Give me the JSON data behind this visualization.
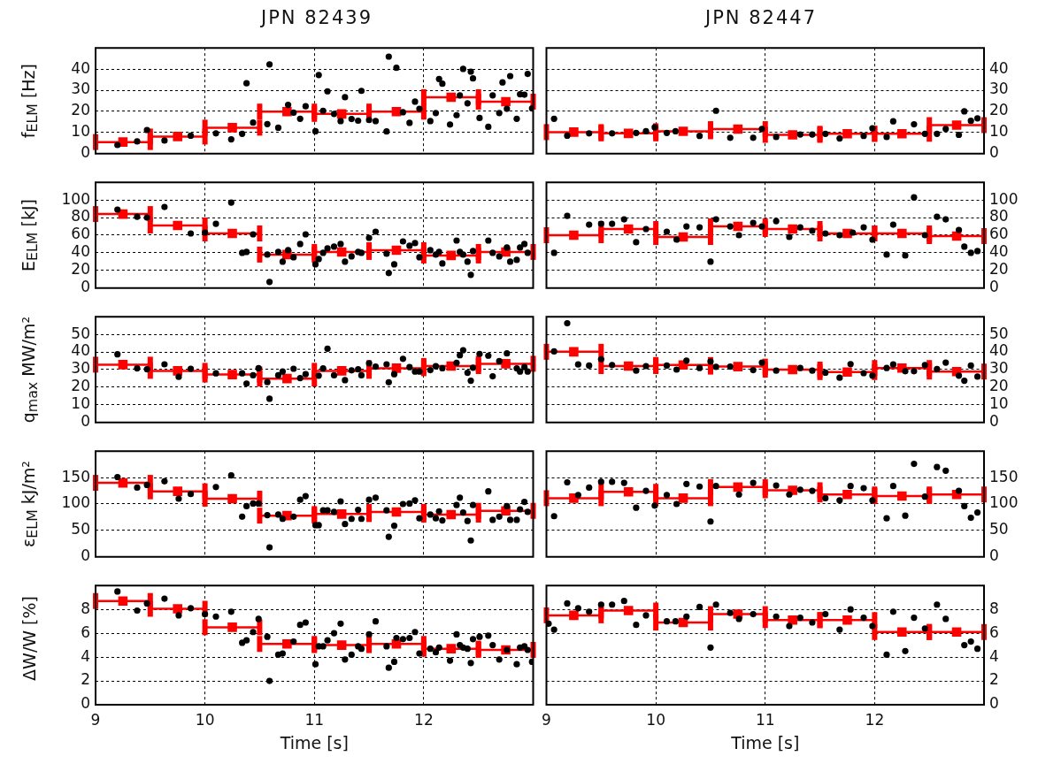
{
  "chart_data": [
    {
      "type": "scatter",
      "title": "JPN 82439",
      "ylabel": "f$_{ELM}$ [Hz]",
      "xlim": [
        9,
        13
      ],
      "xticks": [
        9,
        10,
        11,
        12
      ],
      "ylim": [
        0,
        50
      ],
      "yticks": [
        0,
        10,
        20,
        30,
        40
      ],
      "grid": true,
      "tick_labels": "y",
      "series": [
        {
          "color": "#000000",
          "marker": "circle",
          "x": [
            9.2,
            9.38,
            9.47,
            9.63,
            9.87,
            10.1,
            10.24,
            10.34,
            10.38,
            10.44,
            10.57,
            10.59,
            10.67,
            10.76,
            10.81,
            10.87,
            10.92,
            11.01,
            11.04,
            11.08,
            11.12,
            11.18,
            11.28,
            11.24,
            11.34,
            11.4,
            11.43,
            11.5,
            11.56,
            11.66,
            11.68,
            11.75,
            11.81,
            11.87,
            11.92,
            11.96,
            12.06,
            12.11,
            12.14,
            12.17,
            12.24,
            12.3,
            12.33,
            12.36,
            12.4,
            12.43,
            12.45,
            12.51,
            12.59,
            12.63,
            12.69,
            12.72,
            12.76,
            12.79,
            12.85,
            12.88,
            12.92,
            12.95,
            12.99
          ],
          "values": [
            4.1,
            5.8,
            11.2,
            6.2,
            8.5,
            9.6,
            6.8,
            9.4,
            33.3,
            14.7,
            14,
            42.2,
            12.3,
            23.1,
            19.4,
            16.5,
            22.4,
            10.6,
            37.2,
            20.3,
            29.5,
            18.8,
            26.7,
            15.4,
            16.4,
            15.6,
            29.7,
            15.9,
            15.4,
            10.5,
            45.9,
            40.6,
            19.6,
            14.6,
            24.6,
            21.2,
            15.4,
            19.2,
            35.3,
            33.1,
            13.8,
            18.2,
            27.6,
            40.1,
            23.8,
            38.8,
            35.6,
            16.9,
            12.7,
            27.6,
            19.2,
            33.7,
            21.2,
            36.7,
            16.5,
            28.1,
            27.9,
            37.7,
            21.4
          ]
        },
        {
          "color": "#ff0000",
          "marker": "square",
          "x": [
            9.25,
            9.75,
            10.25,
            10.75,
            11.25,
            11.75,
            12.25,
            12.75
          ],
          "values": [
            5.5,
            8.1,
            12.3,
            19.9,
            18.8,
            19.9,
            26.7,
            24.6
          ],
          "xerrors": [
            0.25,
            0.25,
            0.25,
            0.25,
            0.25,
            0.25,
            0.25,
            0.25
          ]
        }
      ]
    },
    {
      "type": "scatter",
      "title": "JPN 82447",
      "xlim": [
        9,
        13
      ],
      "xticks": [
        9,
        10,
        11,
        12
      ],
      "ylim": [
        0,
        50
      ],
      "yticks": [
        0,
        10,
        20,
        30,
        40
      ],
      "grid": true,
      "tick_labels": "y",
      "series": [
        {
          "color": "#000000",
          "marker": "circle",
          "x": [
            9.07,
            9.19,
            9.39,
            9.6,
            9.82,
            9.91,
            9.99,
            10.1,
            10.18,
            10.4,
            10.55,
            10.68,
            10.89,
            10.97,
            11.1,
            11.32,
            11.43,
            11.55,
            11.68,
            11.9,
            11.98,
            12.11,
            12.17,
            12.36,
            12.46,
            12.57,
            12.65,
            12.77,
            12.82,
            12.88,
            12.94
          ],
          "values": [
            16.5,
            8.5,
            9.6,
            9.6,
            9.8,
            10.6,
            12.5,
            9.8,
            10.6,
            8.4,
            20.3,
            7.5,
            7.5,
            11.7,
            7.9,
            9.1,
            9.1,
            9.4,
            7.2,
            8.4,
            12,
            7.9,
            15.3,
            13.9,
            9.4,
            9.4,
            11.7,
            8.9,
            20,
            15.5,
            16.7
          ]
        },
        {
          "color": "#ff0000",
          "marker": "square",
          "x": [
            9.25,
            9.75,
            10.25,
            10.75,
            11.25,
            11.75,
            12.25,
            12.75
          ],
          "values": [
            10.2,
            9.6,
            10.6,
            11.6,
            8.9,
            9.4,
            9.4,
            13.5
          ],
          "xerrors": [
            0.25,
            0.25,
            0.25,
            0.25,
            0.25,
            0.25,
            0.25,
            0.25
          ]
        }
      ]
    },
    {
      "type": "scatter",
      "ylabel": "E$_{ELM}$ [kJ]",
      "xlim": [
        9,
        13
      ],
      "xticks": [
        9,
        10,
        11,
        12
      ],
      "ylim": [
        0,
        120
      ],
      "yticks": [
        0,
        20,
        40,
        60,
        80,
        100
      ],
      "grid": true,
      "tick_labels": "y",
      "series": [
        {
          "color": "#000000",
          "marker": "circle",
          "x": [
            9.2,
            9.38,
            9.47,
            9.63,
            9.87,
            10,
            10.1,
            10.24,
            10.44,
            10.34,
            10.38,
            10.57,
            10.59,
            10.67,
            10.71,
            10.76,
            10.81,
            10.87,
            10.92,
            11.01,
            11.04,
            11.08,
            11.12,
            11.18,
            11.24,
            11.28,
            11.34,
            11.4,
            11.43,
            11.5,
            11.56,
            11.66,
            11.68,
            11.73,
            11.81,
            11.87,
            11.92,
            11.96,
            12.06,
            12.11,
            12.14,
            12.17,
            12.3,
            12.33,
            12.36,
            12.4,
            12.43,
            12.45,
            12.59,
            12.63,
            12.69,
            12.76,
            12.79,
            12.85,
            12.88,
            12.92,
            12.95
          ],
          "values": [
            89,
            81,
            80,
            92,
            62,
            63,
            73,
            97,
            61,
            40,
            41,
            38,
            7,
            41,
            30,
            43,
            35,
            50,
            61,
            27,
            33,
            40,
            45,
            47,
            50,
            30,
            36,
            41,
            40,
            57,
            64,
            39,
            17,
            27,
            53,
            48,
            51,
            35,
            43,
            38,
            41,
            28,
            54,
            41,
            38,
            30,
            15,
            42,
            54,
            40,
            36,
            46,
            30,
            32,
            46,
            50,
            40
          ]
        },
        {
          "color": "#ff0000",
          "marker": "square",
          "x": [
            9.25,
            9.75,
            10.25,
            10.75,
            11.25,
            11.75,
            12.25,
            12.75
          ],
          "values": [
            84,
            71,
            62,
            38,
            41,
            43,
            37,
            41
          ],
          "xerrors": [
            0.25,
            0.25,
            0.25,
            0.25,
            0.25,
            0.25,
            0.25,
            0.25
          ]
        }
      ]
    },
    {
      "type": "scatter",
      "xlim": [
        9,
        13
      ],
      "xticks": [
        9,
        10,
        11,
        12
      ],
      "ylim": [
        0,
        120
      ],
      "yticks": [
        0,
        20,
        40,
        60,
        80,
        100
      ],
      "grid": true,
      "tick_labels": "y",
      "series": [
        {
          "color": "#000000",
          "marker": "circle",
          "x": [
            9.07,
            9.19,
            9.39,
            9.5,
            9.6,
            9.71,
            9.82,
            9.91,
            10.1,
            10.19,
            10.28,
            10.4,
            10.5,
            10.55,
            10.68,
            10.76,
            10.89,
            10.97,
            11.1,
            11.22,
            11.32,
            11.43,
            11.55,
            11.68,
            11.8,
            11.9,
            11.98,
            12.11,
            12.17,
            12.28,
            12.36,
            12.46,
            12.57,
            12.65,
            12.77,
            12.82,
            12.88,
            12.94
          ],
          "values": [
            40,
            82,
            72,
            73,
            73,
            78,
            52,
            67,
            64,
            55,
            70,
            69,
            30,
            78,
            70,
            60,
            74,
            70,
            76,
            58,
            69,
            65,
            62,
            60,
            63,
            69,
            55,
            38,
            72,
            37,
            103,
            60,
            81,
            78,
            66,
            47,
            40,
            42
          ]
        },
        {
          "color": "#ff0000",
          "marker": "square",
          "x": [
            9.25,
            9.75,
            10.25,
            10.75,
            11.25,
            11.75,
            12.25,
            12.75
          ],
          "values": [
            60,
            67,
            58,
            70,
            67,
            62,
            62,
            59
          ],
          "xerrors": [
            0.25,
            0.25,
            0.25,
            0.25,
            0.25,
            0.25,
            0.25,
            0.25
          ]
        }
      ]
    },
    {
      "type": "scatter",
      "ylabel": "q$_{max}$ MW/m²",
      "xlim": [
        9,
        13
      ],
      "xticks": [
        9,
        10,
        11,
        12
      ],
      "ylim": [
        0,
        60
      ],
      "yticks": [
        0,
        10,
        20,
        30,
        40,
        50
      ],
      "grid": true,
      "tick_labels": "y",
      "series": [
        {
          "color": "#000000",
          "marker": "circle",
          "x": [
            9.2,
            9.38,
            9.47,
            9.63,
            9.76,
            9.87,
            10.1,
            10.38,
            10.34,
            10.44,
            10.49,
            10.57,
            10.59,
            10.67,
            10.71,
            10.81,
            10.87,
            10.92,
            11.04,
            11.08,
            11.12,
            11.18,
            11.28,
            11.34,
            11.4,
            11.43,
            11.5,
            11.56,
            11.66,
            11.68,
            11.73,
            11.81,
            11.87,
            11.92,
            11.96,
            12.06,
            12.11,
            12.17,
            12.3,
            12.33,
            12.36,
            12.4,
            12.43,
            12.45,
            12.51,
            12.59,
            12.63,
            12.69,
            12.76,
            12.85,
            12.88,
            12.92,
            12.95
          ],
          "values": [
            38.7,
            30.7,
            30.2,
            33,
            25.9,
            30.5,
            27.9,
            22.1,
            27.9,
            26.8,
            30.8,
            22.9,
            13.5,
            26.8,
            28.9,
            30.5,
            25.2,
            27.4,
            26.6,
            30.7,
            41.9,
            26.8,
            24,
            29.6,
            30.2,
            26.8,
            33.6,
            31.7,
            33,
            22.8,
            27.4,
            36.1,
            31.4,
            28.9,
            28.9,
            29.7,
            31.9,
            30.8,
            33.9,
            38.2,
            41,
            28.2,
            23.7,
            31.1,
            38.9,
            37.9,
            26.2,
            34.8,
            39.2,
            30.7,
            28.9,
            31.4,
            28.9
          ]
        },
        {
          "color": "#ff0000",
          "marker": "square",
          "x": [
            9.25,
            9.75,
            10.25,
            10.75,
            11.25,
            11.75,
            12.25,
            12.75
          ],
          "values": [
            32.8,
            29.3,
            27.2,
            24.9,
            29.3,
            30.8,
            32,
            33.3
          ],
          "xerrors": [
            0.25,
            0.25,
            0.25,
            0.25,
            0.25,
            0.25,
            0.25,
            0.25
          ]
        }
      ]
    },
    {
      "type": "scatter",
      "xlim": [
        9,
        13
      ],
      "xticks": [
        9,
        10,
        11,
        12
      ],
      "ylim": [
        0,
        60
      ],
      "yticks": [
        0,
        10,
        20,
        30,
        40,
        50
      ],
      "grid": true,
      "tick_labels": "y",
      "series": [
        {
          "color": "#000000",
          "marker": "circle",
          "x": [
            9.07,
            9.19,
            9.29,
            9.39,
            9.5,
            9.6,
            9.82,
            9.91,
            10.1,
            10.19,
            10.28,
            10.4,
            10.5,
            10.55,
            10.68,
            10.89,
            10.97,
            11.1,
            11.32,
            11.43,
            11.55,
            11.68,
            11.78,
            11.9,
            11.98,
            12.11,
            12.17,
            12.28,
            12.36,
            12.46,
            12.57,
            12.65,
            12.77,
            12.82,
            12.88,
            12.94
          ],
          "values": [
            40.3,
            56.3,
            32.9,
            32.3,
            35.9,
            32.6,
            29.4,
            32,
            32.3,
            30,
            35.1,
            30.9,
            34.6,
            31.6,
            31.7,
            29.7,
            34,
            29.4,
            30.9,
            29.4,
            28.3,
            25.4,
            33.1,
            28,
            26.6,
            30.9,
            32.9,
            29.1,
            29.1,
            32.6,
            30.3,
            34,
            26.6,
            23.7,
            32.3,
            26
          ]
        },
        {
          "color": "#ff0000",
          "marker": "square",
          "x": [
            9.25,
            9.75,
            10.25,
            10.75,
            11.25,
            11.75,
            12.25,
            12.75
          ],
          "values": [
            40.1,
            32,
            32.6,
            31.7,
            30,
            28.6,
            30.9,
            28.9
          ],
          "xerrors": [
            0.25,
            0.25,
            0.25,
            0.25,
            0.25,
            0.25,
            0.25,
            0.25
          ]
        }
      ]
    },
    {
      "type": "scatter",
      "ylabel": "ε$_{ELM}$ kJ/m²",
      "xlim": [
        9,
        13
      ],
      "xticks": [
        9,
        10,
        11,
        12
      ],
      "ylim": [
        0,
        200
      ],
      "yticks": [
        0,
        50,
        100,
        150
      ],
      "grid": true,
      "tick_labels": "y",
      "series": [
        {
          "color": "#000000",
          "marker": "circle",
          "x": [
            9.2,
            9.38,
            9.47,
            9.63,
            9.76,
            9.87,
            10.1,
            10.24,
            10.34,
            10.38,
            10.44,
            10.49,
            10.57,
            10.59,
            10.67,
            10.71,
            10.81,
            10.87,
            10.92,
            11.01,
            11.04,
            11.08,
            11.12,
            11.18,
            11.24,
            11.28,
            11.34,
            11.4,
            11.43,
            11.5,
            11.56,
            11.66,
            11.68,
            11.73,
            11.81,
            11.87,
            11.92,
            11.96,
            12.06,
            12.11,
            12.14,
            12.17,
            12.3,
            12.33,
            12.36,
            12.43,
            12.4,
            12.45,
            12.59,
            12.63,
            12.69,
            12.76,
            12.79,
            12.85,
            12.88,
            12.92,
            12.95
          ],
          "values": [
            151,
            131,
            136,
            143,
            110,
            119,
            132,
            154,
            76,
            96,
            101,
            101,
            79,
            18,
            80,
            72,
            76,
            108,
            115,
            60,
            60,
            88,
            88,
            85,
            105,
            62,
            72,
            89,
            72,
            108,
            112,
            88,
            38,
            59,
            100,
            101,
            107,
            73,
            80,
            73,
            86,
            69,
            98,
            112,
            84,
            31,
            68,
            98,
            124,
            70,
            76,
            96,
            70,
            70,
            90,
            104,
            85
          ]
        },
        {
          "color": "#ff0000",
          "marker": "square",
          "x": [
            9.25,
            9.75,
            10.25,
            10.75,
            11.25,
            11.75,
            12.25,
            12.75
          ],
          "values": [
            140,
            124,
            110,
            78,
            81,
            85,
            80,
            87
          ],
          "xerrors": [
            0.25,
            0.25,
            0.25,
            0.25,
            0.25,
            0.25,
            0.25,
            0.25
          ]
        }
      ]
    },
    {
      "type": "scatter",
      "xlim": [
        9,
        13
      ],
      "xticks": [
        9,
        10,
        11,
        12
      ],
      "ylim": [
        0,
        200
      ],
      "yticks": [
        0,
        50,
        100,
        150
      ],
      "grid": true,
      "tick_labels": "y",
      "series": [
        {
          "color": "#000000",
          "marker": "circle",
          "x": [
            9.07,
            9.19,
            9.29,
            9.39,
            9.5,
            9.6,
            9.71,
            9.82,
            9.91,
            9.99,
            10.1,
            10.19,
            10.28,
            10.4,
            10.5,
            10.55,
            10.76,
            10.89,
            11.1,
            11.22,
            11.32,
            11.43,
            11.55,
            11.68,
            11.78,
            11.9,
            11.98,
            12.11,
            12.17,
            12.28,
            12.36,
            12.46,
            12.57,
            12.65,
            12.77,
            12.82,
            12.88,
            12.94
          ],
          "values": [
            77,
            141,
            117,
            131,
            142,
            142,
            140,
            93,
            125,
            97,
            117,
            100,
            138,
            133,
            67,
            134,
            118,
            140,
            135,
            118,
            127,
            125,
            111,
            107,
            134,
            130,
            107,
            73,
            134,
            78,
            176,
            114,
            170,
            163,
            125,
            96,
            74,
            84
          ]
        },
        {
          "color": "#ff0000",
          "marker": "square",
          "x": [
            9.25,
            9.75,
            10.25,
            10.75,
            11.25,
            11.75,
            12.25,
            12.75
          ],
          "values": [
            111,
            123,
            111,
            132,
            126,
            118,
            115,
            118
          ],
          "xerrors": [
            0.25,
            0.25,
            0.25,
            0.25,
            0.25,
            0.25,
            0.25,
            0.25
          ]
        }
      ]
    },
    {
      "type": "scatter",
      "ylabel": "ΔW/W [%]",
      "xlabel": "Time [s]",
      "xlim": [
        9,
        13
      ],
      "xticks": [
        9,
        10,
        11,
        12
      ],
      "ylim": [
        0,
        10
      ],
      "yticks": [
        0,
        2,
        4,
        6,
        8
      ],
      "grid": true,
      "series": [
        {
          "color": "#000000",
          "marker": "circle",
          "x": [
            9.2,
            9.38,
            9.47,
            9.63,
            9.76,
            9.87,
            10,
            10.1,
            10.24,
            10.34,
            10.38,
            10.44,
            10.49,
            10.57,
            10.59,
            10.67,
            10.71,
            10.81,
            10.87,
            10.92,
            11.01,
            11.04,
            11.08,
            11.12,
            11.18,
            11.24,
            11.28,
            11.34,
            11.4,
            11.43,
            11.5,
            11.56,
            11.66,
            11.68,
            11.73,
            11.75,
            11.81,
            11.87,
            11.92,
            11.96,
            12.06,
            12.11,
            12.14,
            12.24,
            12.3,
            12.33,
            12.36,
            12.4,
            12.43,
            12.45,
            12.51,
            12.59,
            12.63,
            12.69,
            12.76,
            12.85,
            12.88,
            12.92,
            12.95,
            12.99
          ],
          "values": [
            9.5,
            7.9,
            8.5,
            8.9,
            7.5,
            8.1,
            7.6,
            7.4,
            7.8,
            5.2,
            5.4,
            6.1,
            7.2,
            5.7,
            2,
            4.2,
            4.3,
            5.3,
            6.7,
            6.9,
            3.4,
            4.9,
            4.9,
            5.4,
            6,
            6.8,
            3.8,
            4.2,
            4.9,
            4.7,
            5.9,
            7,
            4.9,
            3.1,
            3.6,
            5.6,
            5.5,
            5.6,
            6.1,
            4.3,
            4.7,
            4.4,
            4.8,
            3.7,
            5.9,
            5,
            4.8,
            4.7,
            3.5,
            5.5,
            5.7,
            5.8,
            5,
            3.8,
            4.6,
            3.4,
            4.8,
            4.9,
            4.6,
            3.6
          ]
        },
        {
          "color": "#ff0000",
          "marker": "square",
          "x": [
            9.25,
            9.75,
            10.25,
            10.75,
            11.25,
            11.75,
            12.25,
            12.75
          ],
          "values": [
            8.7,
            8.05,
            6.5,
            5.1,
            5,
            5.1,
            4.7,
            4.6
          ],
          "xerrors": [
            0.25,
            0.25,
            0.25,
            0.25,
            0.25,
            0.25,
            0.25,
            0.25
          ]
        }
      ]
    },
    {
      "type": "scatter",
      "xlabel": "Time [s]",
      "xlim": [
        9,
        13
      ],
      "xticks": [
        9,
        10,
        11,
        12
      ],
      "ylim": [
        0,
        10
      ],
      "yticks": [
        0,
        2,
        4,
        6,
        8
      ],
      "grid": true,
      "series": [
        {
          "color": "#000000",
          "marker": "circle",
          "x": [
            9.02,
            9.07,
            9.19,
            9.29,
            9.39,
            9.5,
            9.6,
            9.71,
            9.82,
            9.91,
            10.1,
            10.18,
            10.28,
            10.4,
            10.5,
            10.55,
            10.68,
            10.76,
            10.89,
            11.1,
            11.22,
            11.32,
            11.43,
            11.55,
            11.68,
            11.78,
            11.9,
            11.98,
            12.11,
            12.17,
            12.28,
            12.36,
            12.46,
            12.57,
            12.65,
            12.82,
            12.88,
            12.94
          ],
          "values": [
            6.8,
            6.3,
            8.5,
            8.1,
            7.8,
            8.4,
            8.4,
            8.7,
            6.7,
            7.5,
            7,
            7,
            7.4,
            8.2,
            4.8,
            8.4,
            7.7,
            7.2,
            7.6,
            7.4,
            6.6,
            7.3,
            6.9,
            7.6,
            6.3,
            8,
            7.3,
            6.6,
            4.2,
            7.8,
            4.5,
            7.3,
            6.4,
            8.4,
            7.2,
            5,
            5.3,
            4.7
          ]
        },
        {
          "color": "#ff0000",
          "marker": "square",
          "x": [
            9.25,
            9.75,
            10.25,
            10.75,
            11.25,
            11.75,
            12.25,
            12.75
          ],
          "values": [
            7.5,
            7.9,
            6.9,
            7.6,
            7.1,
            7.1,
            6.1,
            6.1
          ],
          "xerrors": [
            0.25,
            0.25,
            0.25,
            0.25,
            0.25,
            0.25,
            0.25,
            0.25
          ]
        }
      ]
    }
  ]
}
